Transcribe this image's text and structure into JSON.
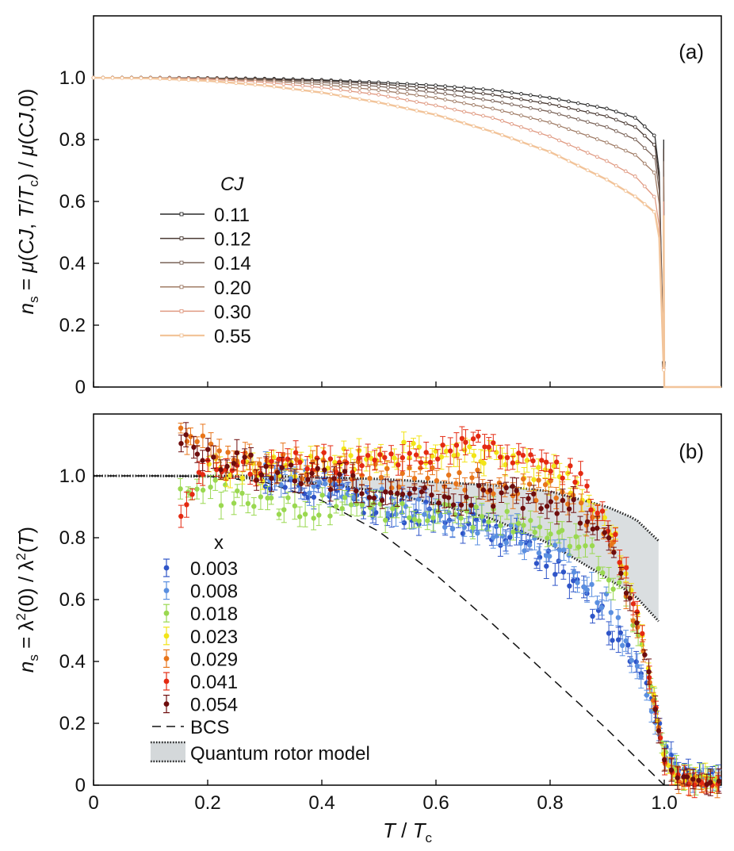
{
  "chart_data": [
    {
      "panel_label": "(a)",
      "type": "line",
      "ylabel": "n_s = μ(CJ, T/T_c) / μ(CJ,0)",
      "xlim": [
        0,
        1.1
      ],
      "ylim": [
        0,
        1.2
      ],
      "yticks": [
        0,
        0.2,
        0.4,
        0.6,
        0.8,
        1.0
      ],
      "ytick_labels": [
        "0",
        "0.2",
        "0.4",
        "0.6",
        "0.8",
        "1.0"
      ],
      "xticks_unlabeled": [
        0,
        0.2,
        0.4,
        0.6,
        0.8,
        1.0
      ],
      "legend_title": "CJ",
      "legend_position": "center-left",
      "grid": false,
      "series": [
        {
          "name": "0.11",
          "color": "#2a2a2a",
          "marker": "dot",
          "x": [
            0,
            0.1,
            0.2,
            0.3,
            0.4,
            0.5,
            0.6,
            0.7,
            0.8,
            0.9,
            0.95,
            0.99,
            1.0,
            1.1
          ],
          "y": [
            1.0,
            1.0,
            0.999,
            0.997,
            0.993,
            0.985,
            0.975,
            0.96,
            0.935,
            0.9,
            0.87,
            0.8,
            0,
            0
          ]
        },
        {
          "name": "0.12",
          "color": "#4a3a33",
          "marker": "square",
          "x": [
            0,
            0.1,
            0.2,
            0.3,
            0.4,
            0.5,
            0.6,
            0.7,
            0.8,
            0.9,
            0.95,
            0.99,
            1.0,
            1.1
          ],
          "y": [
            1.0,
            1.0,
            0.999,
            0.995,
            0.99,
            0.98,
            0.965,
            0.945,
            0.915,
            0.875,
            0.84,
            0.77,
            0,
            0
          ]
        },
        {
          "name": "0.14",
          "color": "#7a6358",
          "marker": "square",
          "x": [
            0,
            0.1,
            0.2,
            0.3,
            0.4,
            0.5,
            0.6,
            0.7,
            0.8,
            0.9,
            0.95,
            0.99,
            1.0,
            1.1
          ],
          "y": [
            1.0,
            1.0,
            0.998,
            0.993,
            0.985,
            0.972,
            0.952,
            0.925,
            0.89,
            0.84,
            0.8,
            0.73,
            0,
            0
          ]
        },
        {
          "name": "0.20",
          "color": "#a07c66",
          "marker": "square",
          "x": [
            0,
            0.1,
            0.2,
            0.3,
            0.4,
            0.5,
            0.6,
            0.7,
            0.8,
            0.9,
            0.95,
            0.99,
            1.0,
            1.1
          ],
          "y": [
            1.0,
            1.0,
            0.997,
            0.99,
            0.978,
            0.96,
            0.935,
            0.9,
            0.855,
            0.79,
            0.75,
            0.68,
            0,
            0
          ]
        },
        {
          "name": "0.30",
          "color": "#e09a82",
          "marker": "circle",
          "x": [
            0,
            0.1,
            0.2,
            0.3,
            0.4,
            0.5,
            0.6,
            0.7,
            0.8,
            0.9,
            0.95,
            0.99,
            1.0,
            1.1
          ],
          "y": [
            1.0,
            0.999,
            0.995,
            0.985,
            0.968,
            0.945,
            0.91,
            0.87,
            0.81,
            0.73,
            0.68,
            0.6,
            0,
            0
          ]
        },
        {
          "name": "0.55",
          "color": "#f2c49a",
          "marker": "x",
          "x": [
            0,
            0.1,
            0.2,
            0.3,
            0.4,
            0.5,
            0.6,
            0.7,
            0.8,
            0.9,
            0.95,
            0.99,
            1.0,
            1.1
          ],
          "y": [
            1.0,
            0.998,
            0.99,
            0.975,
            0.952,
            0.92,
            0.88,
            0.825,
            0.76,
            0.67,
            0.615,
            0.555,
            0,
            0
          ]
        }
      ]
    },
    {
      "panel_label": "(b)",
      "type": "scatter",
      "xlabel": "T / T_c",
      "ylabel": "n_s = λ²(0) / λ²(T)",
      "xlim": [
        0,
        1.1
      ],
      "ylim": [
        0,
        1.2
      ],
      "xticks": [
        0,
        0.2,
        0.4,
        0.6,
        0.8,
        1.0
      ],
      "xtick_labels": [
        "0",
        "0.2",
        "0.4",
        "0.6",
        "0.8",
        "1.0"
      ],
      "yticks": [
        0,
        0.2,
        0.4,
        0.6,
        0.8,
        1.0
      ],
      "ytick_labels": [
        "0",
        "0.2",
        "0.4",
        "0.6",
        "0.8",
        "1.0"
      ],
      "legend_title": "x",
      "legend_position": "lower-left",
      "grid": false,
      "series": [
        {
          "name": "0.003",
          "color": "#2f55c8",
          "x": [
            0.3,
            0.4,
            0.5,
            0.6,
            0.7,
            0.75,
            0.8,
            0.85,
            0.9,
            0.93,
            0.96,
            0.98,
            1.0,
            1.02,
            1.05,
            1.08,
            1.1
          ],
          "y": [
            1.0,
            0.96,
            0.9,
            0.87,
            0.82,
            0.78,
            0.72,
            0.63,
            0.52,
            0.45,
            0.36,
            0.28,
            0.12,
            0.06,
            0.04,
            0.03,
            0.03
          ]
        },
        {
          "name": "0.008",
          "color": "#5a8fe0",
          "x": [
            0.3,
            0.4,
            0.5,
            0.6,
            0.7,
            0.75,
            0.8,
            0.85,
            0.9,
            0.93,
            0.96,
            0.98,
            1.0,
            1.02,
            1.05,
            1.08,
            1.1
          ],
          "y": [
            1.0,
            0.97,
            0.92,
            0.88,
            0.84,
            0.8,
            0.76,
            0.68,
            0.58,
            0.48,
            0.36,
            0.24,
            0.1,
            0.05,
            0.03,
            0.02,
            0.02
          ]
        },
        {
          "name": "0.018",
          "color": "#9ad850",
          "x": [
            0.15,
            0.2,
            0.3,
            0.4,
            0.5,
            0.6,
            0.7,
            0.8,
            0.85,
            0.9,
            0.93,
            0.96,
            0.98,
            1.0,
            1.02,
            1.05,
            1.1
          ],
          "y": [
            0.93,
            0.95,
            0.92,
            0.9,
            0.88,
            0.88,
            0.86,
            0.82,
            0.78,
            0.7,
            0.6,
            0.45,
            0.3,
            0.1,
            0.04,
            0.02,
            0.01
          ]
        },
        {
          "name": "0.023",
          "color": "#f2e418",
          "x": [
            0.2,
            0.3,
            0.4,
            0.5,
            0.6,
            0.7,
            0.8,
            0.85,
            0.9,
            0.93,
            0.96,
            0.98,
            1.0,
            1.02,
            1.05,
            1.1
          ],
          "y": [
            1.02,
            1.02,
            1.05,
            1.06,
            1.08,
            1.05,
            1.0,
            0.95,
            0.85,
            0.72,
            0.5,
            0.3,
            0.1,
            0.03,
            0.02,
            0.01
          ]
        },
        {
          "name": "0.029",
          "color": "#e8751a",
          "x": [
            0.15,
            0.2,
            0.3,
            0.4,
            0.5,
            0.6,
            0.7,
            0.8,
            0.85,
            0.9,
            0.93,
            0.96,
            0.98,
            1.0,
            1.02,
            1.05,
            1.1
          ],
          "y": [
            1.15,
            1.08,
            1.04,
            1.02,
            1.0,
            1.0,
            0.98,
            0.95,
            0.9,
            0.8,
            0.66,
            0.48,
            0.28,
            0.08,
            0.02,
            0.01,
            0.0
          ]
        },
        {
          "name": "0.041",
          "color": "#e42a12",
          "x": [
            0.15,
            0.2,
            0.3,
            0.4,
            0.5,
            0.6,
            0.7,
            0.8,
            0.85,
            0.9,
            0.93,
            0.96,
            0.98,
            1.0,
            1.02,
            1.05,
            1.1
          ],
          "y": [
            0.86,
            1.02,
            1.02,
            1.05,
            1.05,
            1.08,
            1.1,
            1.04,
            0.98,
            0.85,
            0.7,
            0.5,
            0.3,
            0.08,
            0.02,
            0.01,
            0.0
          ]
        },
        {
          "name": "0.054",
          "color": "#6e0d0d",
          "x": [
            0.15,
            0.2,
            0.3,
            0.4,
            0.5,
            0.6,
            0.7,
            0.8,
            0.85,
            0.9,
            0.93,
            0.96,
            0.98,
            1.0,
            1.02,
            1.05,
            1.1
          ],
          "y": [
            1.12,
            1.05,
            1.02,
            1.0,
            0.96,
            0.95,
            0.93,
            0.92,
            0.88,
            0.78,
            0.64,
            0.48,
            0.3,
            0.08,
            0.02,
            0.01,
            0.0
          ]
        },
        {
          "name": "BCS",
          "type": "line",
          "style": "dashed",
          "color": "#111111",
          "x": [
            0,
            0.1,
            0.2,
            0.3,
            0.4,
            0.5,
            0.6,
            0.7,
            0.8,
            0.9,
            1.0
          ],
          "y": [
            1.0,
            1.0,
            0.999,
            0.98,
            0.92,
            0.82,
            0.68,
            0.52,
            0.35,
            0.18,
            0.0
          ]
        },
        {
          "name": "Quantum rotor model",
          "type": "band",
          "color": "#d4d8da",
          "x": [
            0,
            0.1,
            0.2,
            0.3,
            0.4,
            0.5,
            0.6,
            0.7,
            0.8,
            0.9,
            0.95,
            0.99
          ],
          "y_upper": [
            1.0,
            1.0,
            1.0,
            1.0,
            0.995,
            0.99,
            0.98,
            0.97,
            0.95,
            0.9,
            0.86,
            0.79
          ],
          "y_lower": [
            1.0,
            1.0,
            0.998,
            0.99,
            0.975,
            0.95,
            0.91,
            0.86,
            0.78,
            0.67,
            0.61,
            0.53
          ]
        }
      ]
    }
  ]
}
